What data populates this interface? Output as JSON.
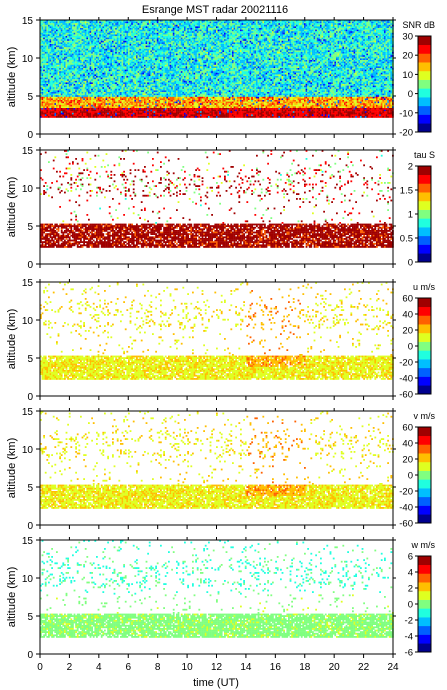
{
  "chart_data": [
    {
      "type": "heatmap",
      "title": "Esrange MST radar 20021116",
      "ylabel": "altitude (km)",
      "xlabel": "",
      "xlim": [
        0,
        24
      ],
      "ylim": [
        0,
        15
      ],
      "yticks": [
        0,
        5,
        10,
        15
      ],
      "xticks": [
        0,
        2,
        4,
        6,
        8,
        10,
        12,
        14,
        16,
        18,
        20,
        22,
        24
      ],
      "colorbar": {
        "label": "SNR dB",
        "range": [
          -20,
          30
        ],
        "ticks": [
          -20,
          -10,
          0,
          10,
          20,
          30
        ]
      },
      "fill": "dense",
      "description_values": {
        "near_surface_max_db": 30,
        "upper_layer_db": 5
      }
    },
    {
      "type": "heatmap",
      "ylabel": "altitude (km)",
      "xlabel": "",
      "xlim": [
        0,
        24
      ],
      "ylim": [
        0,
        15
      ],
      "yticks": [
        0,
        5,
        10,
        15
      ],
      "xticks": [
        0,
        2,
        4,
        6,
        8,
        10,
        12,
        14,
        16,
        18,
        20,
        22,
        24
      ],
      "colorbar": {
        "label": "tau S",
        "range": [
          0,
          2
        ],
        "ticks": [
          0,
          0.5,
          1,
          1.5,
          2
        ]
      },
      "fill": "sparse"
    },
    {
      "type": "heatmap",
      "ylabel": "altitude (km)",
      "xlabel": "",
      "xlim": [
        0,
        24
      ],
      "ylim": [
        0,
        15
      ],
      "yticks": [
        0,
        5,
        10,
        15
      ],
      "xticks": [
        0,
        2,
        4,
        6,
        8,
        10,
        12,
        14,
        16,
        18,
        20,
        22,
        24
      ],
      "colorbar": {
        "label": "u m/s",
        "range": [
          -60,
          60
        ],
        "ticks": [
          -60,
          -40,
          -20,
          0,
          20,
          40,
          60
        ]
      },
      "fill": "sparse"
    },
    {
      "type": "heatmap",
      "ylabel": "altitude (km)",
      "xlabel": "",
      "xlim": [
        0,
        24
      ],
      "ylim": [
        0,
        15
      ],
      "yticks": [
        0,
        5,
        10,
        15
      ],
      "xticks": [
        0,
        2,
        4,
        6,
        8,
        10,
        12,
        14,
        16,
        18,
        20,
        22,
        24
      ],
      "colorbar": {
        "label": "v m/s",
        "range": [
          -60,
          60
        ],
        "ticks": [
          -60,
          -40,
          -20,
          0,
          20,
          40,
          60
        ]
      },
      "fill": "sparse"
    },
    {
      "type": "heatmap",
      "ylabel": "altitude (km)",
      "xlabel": "time (UT)",
      "xlim": [
        0,
        24
      ],
      "ylim": [
        0,
        15
      ],
      "yticks": [
        0,
        5,
        10,
        15
      ],
      "xticks": [
        0,
        2,
        4,
        6,
        8,
        10,
        12,
        14,
        16,
        18,
        20,
        22,
        24
      ],
      "xticklabels": [
        "0",
        "2",
        "4",
        "6",
        "8",
        "10",
        "12",
        "14",
        "16",
        "18",
        "20",
        "22",
        "24"
      ],
      "colorbar": {
        "label": "w m/s",
        "range": [
          -6,
          6
        ],
        "ticks": [
          -6,
          -4,
          -2,
          0,
          2,
          4,
          6
        ]
      },
      "fill": "sparse"
    }
  ],
  "colormap": [
    "#00008f",
    "#0000ff",
    "#0060ff",
    "#00bfff",
    "#20ffdf",
    "#80ff80",
    "#dfff20",
    "#ffbf00",
    "#ff6000",
    "#ff0000",
    "#a00000"
  ]
}
